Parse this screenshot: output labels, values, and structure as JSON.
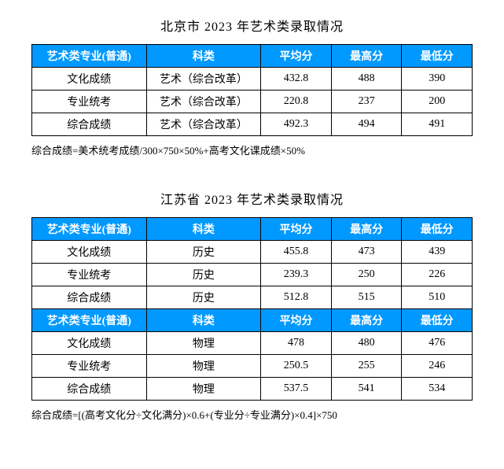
{
  "header_bg": "#0099ff",
  "header_fg": "#ffffff",
  "border_color": "#000000",
  "background": "#ffffff",
  "beijing": {
    "title": "北京市 2023 年艺术类录取情况",
    "columns": [
      "艺术类专业(普通)",
      "科类",
      "平均分",
      "最高分",
      "最低分"
    ],
    "rows": [
      [
        "文化成绩",
        "艺术（综合改革）",
        "432.8",
        "488",
        "390"
      ],
      [
        "专业统考",
        "艺术（综合改革）",
        "220.8",
        "237",
        "200"
      ],
      [
        "综合成绩",
        "艺术（综合改革）",
        "492.3",
        "494",
        "491"
      ]
    ],
    "footnote": "综合成绩=美术统考成绩/300×750×50%+高考文化课成绩×50%"
  },
  "jiangsu": {
    "title": "江苏省 2023 年艺术类录取情况",
    "columns": [
      "艺术类专业(普通)",
      "科类",
      "平均分",
      "最高分",
      "最低分"
    ],
    "rows_history": [
      [
        "文化成绩",
        "历史",
        "455.8",
        "473",
        "439"
      ],
      [
        "专业统考",
        "历史",
        "239.3",
        "250",
        "226"
      ],
      [
        "综合成绩",
        "历史",
        "512.8",
        "515",
        "510"
      ]
    ],
    "rows_physics": [
      [
        "文化成绩",
        "物理",
        "478",
        "480",
        "476"
      ],
      [
        "专业统考",
        "物理",
        "250.5",
        "255",
        "246"
      ],
      [
        "综合成绩",
        "物理",
        "537.5",
        "541",
        "534"
      ]
    ],
    "footnote": "综合成绩=[(高考文化分÷文化满分)×0.6+(专业分÷专业满分)×0.4]×750"
  }
}
